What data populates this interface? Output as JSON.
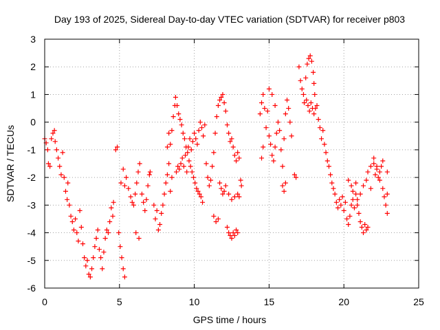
{
  "chart_data": {
    "type": "scatter",
    "title": "Day 193 of 2025, Sidereal Day-to-day VTEC variation (SDTVAR) for receiver p803",
    "xlabel": "GPS time / hours",
    "ylabel": "SDTVAR / TECUs",
    "xlim": [
      0,
      25
    ],
    "ylim": [
      -6,
      3
    ],
    "xticks": [
      0,
      5,
      10,
      15,
      20,
      25
    ],
    "xtick_labels": [
      "0",
      "5",
      "10",
      "15",
      "20",
      "25"
    ],
    "yticks": [
      -6,
      -5,
      -4,
      -3,
      -2,
      -1,
      0,
      1,
      2,
      3
    ],
    "ytick_labels": [
      "-6",
      "-5",
      "-4",
      "-3",
      "-2",
      "-1",
      "0",
      "1",
      "2",
      "3"
    ],
    "grid": true,
    "marker": "+",
    "color": "#ff0000",
    "series": [
      {
        "name": "p803",
        "points": [
          [
            0.0,
            -0.6
          ],
          [
            0.1,
            -0.75
          ],
          [
            0.2,
            -1.0
          ],
          [
            0.25,
            -1.5
          ],
          [
            0.35,
            -1.6
          ],
          [
            0.45,
            -0.6
          ],
          [
            0.55,
            -0.4
          ],
          [
            0.65,
            -0.3
          ],
          [
            0.7,
            -0.7
          ],
          [
            0.8,
            -1.0
          ],
          [
            0.9,
            -1.3
          ],
          [
            1.0,
            -1.6
          ],
          [
            1.1,
            -1.9
          ],
          [
            1.2,
            -1.1
          ],
          [
            1.3,
            -2.0
          ],
          [
            1.4,
            -2.5
          ],
          [
            1.5,
            -2.8
          ],
          [
            1.55,
            -2.2
          ],
          [
            1.65,
            -3.0
          ],
          [
            1.75,
            -3.4
          ],
          [
            1.85,
            -3.6
          ],
          [
            1.95,
            -3.9
          ],
          [
            2.05,
            -3.5
          ],
          [
            2.15,
            -4.0
          ],
          [
            2.25,
            -4.3
          ],
          [
            2.35,
            -3.2
          ],
          [
            2.45,
            -3.8
          ],
          [
            2.55,
            -4.4
          ],
          [
            2.65,
            -4.9
          ],
          [
            2.75,
            -5.2
          ],
          [
            2.85,
            -5.0
          ],
          [
            2.95,
            -5.5
          ],
          [
            3.05,
            -5.6
          ],
          [
            3.15,
            -5.3
          ],
          [
            3.25,
            -4.9
          ],
          [
            3.35,
            -4.5
          ],
          [
            3.45,
            -4.2
          ],
          [
            3.55,
            -3.9
          ],
          [
            3.65,
            -4.6
          ],
          [
            3.75,
            -4.9
          ],
          [
            3.85,
            -5.3
          ],
          [
            3.95,
            -4.7
          ],
          [
            4.05,
            -4.2
          ],
          [
            4.15,
            -3.9
          ],
          [
            4.25,
            -4.0
          ],
          [
            4.35,
            -3.6
          ],
          [
            4.45,
            -3.1
          ],
          [
            4.55,
            -3.4
          ],
          [
            4.6,
            -2.9
          ],
          [
            4.75,
            -1.0
          ],
          [
            4.85,
            -0.9
          ],
          [
            4.95,
            -4.0
          ],
          [
            5.05,
            -4.5
          ],
          [
            5.15,
            -4.9
          ],
          [
            5.25,
            -5.3
          ],
          [
            5.35,
            -5.6
          ],
          [
            5.1,
            -2.2
          ],
          [
            5.25,
            -1.7
          ],
          [
            5.35,
            -2.3
          ],
          [
            5.45,
            -2.0
          ],
          [
            5.6,
            -2.4
          ],
          [
            5.75,
            -2.7
          ],
          [
            5.85,
            -2.9
          ],
          [
            5.95,
            -3.0
          ],
          [
            6.05,
            -2.6
          ],
          [
            6.15,
            -2.2
          ],
          [
            6.25,
            -1.8
          ],
          [
            6.35,
            -1.5
          ],
          [
            6.1,
            -4.0
          ],
          [
            6.3,
            -4.2
          ],
          [
            6.5,
            -2.6
          ],
          [
            6.6,
            -2.9
          ],
          [
            6.7,
            -3.2
          ],
          [
            6.8,
            -2.8
          ],
          [
            6.9,
            -2.3
          ],
          [
            7.0,
            -1.9
          ],
          [
            7.05,
            -1.8
          ],
          [
            7.3,
            -3.0
          ],
          [
            7.4,
            -3.5
          ],
          [
            7.5,
            -3.2
          ],
          [
            7.6,
            -3.9
          ],
          [
            7.7,
            -3.7
          ],
          [
            7.8,
            -3.3
          ],
          [
            7.9,
            -3.0
          ],
          [
            8.0,
            -2.6
          ],
          [
            8.1,
            -2.2
          ],
          [
            8.2,
            -1.9
          ],
          [
            8.3,
            -1.5
          ],
          [
            8.4,
            -2.5
          ],
          [
            8.5,
            -2.0
          ],
          [
            8.2,
            -0.9
          ],
          [
            8.3,
            -0.4
          ],
          [
            8.4,
            -0.8
          ],
          [
            8.5,
            -0.3
          ],
          [
            8.6,
            0.2
          ],
          [
            8.7,
            0.6
          ],
          [
            8.75,
            0.9
          ],
          [
            8.85,
            0.6
          ],
          [
            8.95,
            0.3
          ],
          [
            9.05,
            0.1
          ],
          [
            9.15,
            -0.1
          ],
          [
            9.25,
            -0.4
          ],
          [
            9.35,
            -0.6
          ],
          [
            9.45,
            -0.9
          ],
          [
            9.55,
            -1.1
          ],
          [
            9.65,
            -1.4
          ],
          [
            9.75,
            -1.6
          ],
          [
            9.85,
            -1.8
          ],
          [
            9.95,
            -2.0
          ],
          [
            10.05,
            -2.2
          ],
          [
            10.15,
            -2.4
          ],
          [
            10.25,
            -2.5
          ],
          [
            10.35,
            -2.6
          ],
          [
            10.45,
            -2.7
          ],
          [
            10.55,
            -2.9
          ],
          [
            8.8,
            -1.8
          ],
          [
            8.9,
            -1.6
          ],
          [
            9.0,
            -1.7
          ],
          [
            9.1,
            -1.5
          ],
          [
            9.2,
            -1.3
          ],
          [
            9.3,
            -1.6
          ],
          [
            9.4,
            -1.2
          ],
          [
            9.5,
            -1.8
          ],
          [
            9.6,
            -0.9
          ],
          [
            9.7,
            -0.6
          ],
          [
            9.8,
            -1.0
          ],
          [
            9.9,
            -0.7
          ],
          [
            10.0,
            -0.4
          ],
          [
            10.1,
            -0.6
          ],
          [
            10.2,
            -0.8
          ],
          [
            10.3,
            -0.3
          ],
          [
            10.4,
            0.0
          ],
          [
            10.5,
            -0.2
          ],
          [
            10.6,
            -0.5
          ],
          [
            10.7,
            -0.1
          ],
          [
            10.8,
            -1.5
          ],
          [
            10.9,
            -2.0
          ],
          [
            11.0,
            -2.3
          ],
          [
            11.1,
            -2.1
          ],
          [
            11.2,
            -1.6
          ],
          [
            11.3,
            -1.1
          ],
          [
            11.4,
            -0.4
          ],
          [
            11.5,
            0.2
          ],
          [
            11.6,
            0.6
          ],
          [
            11.7,
            0.8
          ],
          [
            11.8,
            0.9
          ],
          [
            11.9,
            1.0
          ],
          [
            12.0,
            0.7
          ],
          [
            12.1,
            0.4
          ],
          [
            12.2,
            -0.1
          ],
          [
            12.3,
            -0.4
          ],
          [
            12.4,
            -0.7
          ],
          [
            12.5,
            -0.6
          ],
          [
            12.6,
            -0.9
          ],
          [
            12.7,
            -1.2
          ],
          [
            12.8,
            -1.4
          ],
          [
            12.9,
            -1.1
          ],
          [
            13.0,
            -1.3
          ],
          [
            11.3,
            -3.4
          ],
          [
            11.45,
            -3.6
          ],
          [
            11.6,
            -3.5
          ],
          [
            11.7,
            -2.2
          ],
          [
            11.8,
            -2.4
          ],
          [
            11.9,
            -2.6
          ],
          [
            12.0,
            -2.5
          ],
          [
            12.1,
            -2.3
          ],
          [
            12.3,
            -2.6
          ],
          [
            12.5,
            -2.8
          ],
          [
            12.7,
            -2.7
          ],
          [
            12.9,
            -2.6
          ],
          [
            13.0,
            -2.7
          ],
          [
            12.2,
            -3.8
          ],
          [
            12.3,
            -4.0
          ],
          [
            12.4,
            -4.1
          ],
          [
            12.5,
            -4.2
          ],
          [
            12.6,
            -4.0
          ],
          [
            12.7,
            -4.1
          ],
          [
            12.8,
            -3.9
          ],
          [
            12.9,
            -4.0
          ],
          [
            13.1,
            -2.1
          ],
          [
            13.15,
            -2.3
          ],
          [
            14.4,
            0.3
          ],
          [
            14.5,
            0.7
          ],
          [
            14.6,
            1.0
          ],
          [
            14.7,
            0.5
          ],
          [
            14.8,
            -0.2
          ],
          [
            14.9,
            0.4
          ],
          [
            15.0,
            -0.5
          ],
          [
            15.1,
            -0.8
          ],
          [
            15.2,
            -1.2
          ],
          [
            15.3,
            -1.4
          ],
          [
            15.4,
            -0.9
          ],
          [
            15.5,
            -0.4
          ],
          [
            15.6,
            0.0
          ],
          [
            15.7,
            -0.3
          ],
          [
            15.8,
            -1.0
          ],
          [
            15.9,
            -1.6
          ],
          [
            16.0,
            -0.6
          ],
          [
            16.1,
            0.3
          ],
          [
            16.2,
            0.8
          ],
          [
            16.3,
            0.5
          ],
          [
            16.4,
            0.0
          ],
          [
            16.5,
            -0.5
          ],
          [
            14.5,
            -1.3
          ],
          [
            14.6,
            -0.9
          ],
          [
            15.0,
            1.2
          ],
          [
            15.2,
            1.0
          ],
          [
            15.4,
            0.6
          ],
          [
            15.9,
            -2.3
          ],
          [
            16.0,
            -2.5
          ],
          [
            16.1,
            -2.2
          ],
          [
            16.7,
            -1.9
          ],
          [
            16.8,
            -2.0
          ],
          [
            17.0,
            2.0
          ],
          [
            17.1,
            1.5
          ],
          [
            17.2,
            1.2
          ],
          [
            17.3,
            1.0
          ],
          [
            17.35,
            0.7
          ],
          [
            17.45,
            1.6
          ],
          [
            17.55,
            2.1
          ],
          [
            17.65,
            2.3
          ],
          [
            17.75,
            2.4
          ],
          [
            17.85,
            2.2
          ],
          [
            17.95,
            1.8
          ],
          [
            18.0,
            1.4
          ],
          [
            18.05,
            1.0
          ],
          [
            18.1,
            0.5
          ],
          [
            17.5,
            0.8
          ],
          [
            17.6,
            0.6
          ],
          [
            17.7,
            0.4
          ],
          [
            17.8,
            0.7
          ],
          [
            17.9,
            0.5
          ],
          [
            18.0,
            0.3
          ],
          [
            18.2,
            0.6
          ],
          [
            18.3,
            0.1
          ],
          [
            18.4,
            -0.2
          ],
          [
            18.5,
            -0.6
          ],
          [
            18.6,
            -0.3
          ],
          [
            18.7,
            -0.8
          ],
          [
            18.8,
            -1.1
          ],
          [
            18.9,
            -1.4
          ],
          [
            19.0,
            -1.6
          ],
          [
            19.1,
            -1.9
          ],
          [
            19.2,
            -2.2
          ],
          [
            19.3,
            -2.4
          ],
          [
            19.4,
            -2.6
          ],
          [
            19.5,
            -2.9
          ],
          [
            19.6,
            -3.1
          ],
          [
            19.7,
            -2.8
          ],
          [
            19.8,
            -3.0
          ],
          [
            19.9,
            -2.7
          ],
          [
            20.0,
            -3.2
          ],
          [
            20.1,
            -2.9
          ],
          [
            20.2,
            -3.5
          ],
          [
            20.3,
            -3.7
          ],
          [
            20.4,
            -3.4
          ],
          [
            20.5,
            -3.0
          ],
          [
            20.6,
            -2.8
          ],
          [
            20.7,
            -3.1
          ],
          [
            20.8,
            -2.6
          ],
          [
            20.9,
            -3.0
          ],
          [
            21.0,
            -3.3
          ],
          [
            21.1,
            -3.6
          ],
          [
            21.2,
            -3.8
          ],
          [
            21.3,
            -4.0
          ],
          [
            21.4,
            -3.7
          ],
          [
            21.5,
            -3.9
          ],
          [
            21.6,
            -3.8
          ],
          [
            20.3,
            -2.1
          ],
          [
            20.5,
            -2.3
          ],
          [
            20.6,
            -2.5
          ],
          [
            20.8,
            -2.2
          ],
          [
            20.9,
            -2.8
          ],
          [
            21.1,
            -2.6
          ],
          [
            21.3,
            -2.3
          ],
          [
            21.5,
            -2.1
          ],
          [
            21.6,
            -1.8
          ],
          [
            21.8,
            -1.6
          ],
          [
            22.0,
            -1.5
          ],
          [
            22.1,
            -1.9
          ],
          [
            22.2,
            -1.7
          ],
          [
            22.3,
            -2.0
          ],
          [
            22.4,
            -1.8
          ],
          [
            22.5,
            -1.6
          ],
          [
            22.6,
            -2.4
          ],
          [
            22.7,
            -2.7
          ],
          [
            22.8,
            -3.0
          ],
          [
            22.9,
            -3.3
          ],
          [
            22.9,
            -2.6
          ],
          [
            22.9,
            -1.8
          ],
          [
            21.8,
            -2.4
          ],
          [
            22.0,
            -1.3
          ],
          [
            22.2,
            -1.6
          ],
          [
            22.4,
            -2.1
          ],
          [
            22.6,
            -1.4
          ]
        ]
      }
    ]
  }
}
